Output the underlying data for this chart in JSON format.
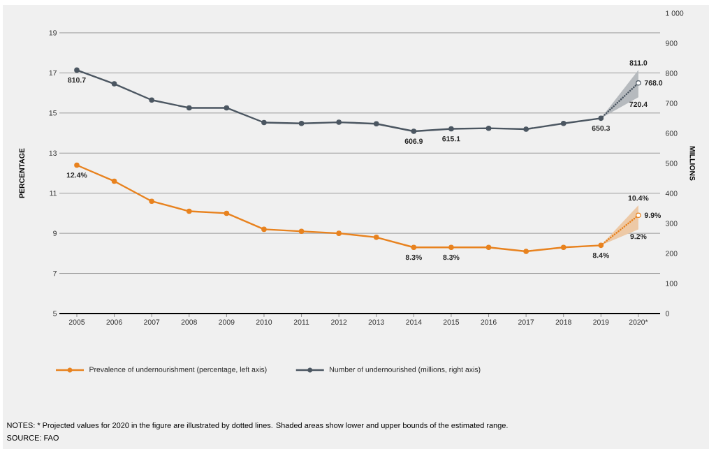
{
  "chart_data": {
    "type": "line",
    "ylabel": "PERCENTAGE",
    "y2label": "MILLIONS",
    "categories": [
      "2005",
      "2006",
      "2007",
      "2008",
      "2009",
      "2010",
      "2011",
      "2012",
      "2013",
      "2014",
      "2015",
      "2016",
      "2017",
      "2018",
      "2019",
      "2020*"
    ],
    "ylim": [
      5,
      19
    ],
    "yticks": [
      5,
      7,
      9,
      11,
      13,
      15,
      17,
      19
    ],
    "y2lim": [
      0,
      1000
    ],
    "y2ticks": [
      0,
      100,
      200,
      300,
      400,
      500,
      600,
      700,
      800,
      900,
      {
        "value": 1000,
        "label": "1 000"
      }
    ],
    "grid": "y",
    "legend": "bottom",
    "marker": "circle",
    "line_style": "solid",
    "series": [
      {
        "name": "Prevalence of undernourishment (percentage, left axis)",
        "color": "#e8821e",
        "values": [
          12.4,
          11.6,
          10.6,
          10.1,
          10.0,
          9.2,
          9.1,
          9.0,
          8.8,
          8.3,
          8.3,
          8.3,
          8.1,
          8.3,
          8.4,
          null
        ],
        "value_labels": [
          "12.4%",
          null,
          null,
          null,
          null,
          null,
          null,
          null,
          null,
          "8.3%",
          "8.3%",
          null,
          null,
          null,
          "8.4%",
          null
        ]
      },
      {
        "color": "#e8821e",
        "line_style": "dotted",
        "values": [
          null,
          null,
          null,
          null,
          null,
          null,
          null,
          null,
          null,
          null,
          null,
          null,
          null,
          null,
          8.4,
          9.9
        ],
        "lower": [
          null,
          null,
          null,
          null,
          null,
          null,
          null,
          null,
          null,
          null,
          null,
          null,
          null,
          null,
          8.4,
          9.2
        ],
        "upper": [
          null,
          null,
          null,
          null,
          null,
          null,
          null,
          null,
          null,
          null,
          null,
          null,
          null,
          null,
          8.4,
          10.4
        ],
        "value_labels": [
          null,
          null,
          null,
          null,
          null,
          null,
          null,
          null,
          null,
          null,
          null,
          null,
          null,
          null,
          null,
          "9.9%"
        ]
      },
      {
        "name": "Number of undernourished (millions, right axis)",
        "color": "#4b5661",
        "axis": "y2",
        "values": [
          810.7,
          765,
          711,
          685,
          685,
          636,
          633,
          637,
          632,
          606.9,
          615.1,
          617,
          614,
          633,
          650.3,
          null
        ],
        "value_labels": [
          "810.7",
          null,
          null,
          null,
          null,
          null,
          null,
          null,
          null,
          "606.9",
          "615.1",
          null,
          null,
          null,
          "650.3",
          null
        ]
      },
      {
        "color": "#4b5661",
        "axis": "y2",
        "line_style": "dotted",
        "values": [
          null,
          null,
          null,
          null,
          null,
          null,
          null,
          null,
          null,
          null,
          null,
          null,
          null,
          null,
          650.3,
          768.0
        ],
        "lower": [
          null,
          null,
          null,
          null,
          null,
          null,
          null,
          null,
          null,
          null,
          null,
          null,
          null,
          null,
          650.3,
          720.4
        ],
        "upper": [
          null,
          null,
          null,
          null,
          null,
          null,
          null,
          null,
          null,
          null,
          null,
          null,
          null,
          null,
          650.3,
          811.0
        ],
        "value_labels": [
          null,
          null,
          null,
          null,
          null,
          null,
          null,
          null,
          null,
          null,
          null,
          null,
          null,
          null,
          null,
          "768.0"
        ]
      }
    ],
    "annotations": [
      "NOTES: * Projected values for 2020 in the figure are illustrated by dotted lines. Shaded areas show lower and upper bounds of the estimated range.",
      "SOURCE: FAO",
      {
        "text": "10.4%",
        "x": "2020*",
        "y": 10.4
      },
      {
        "text": "9.2%",
        "x": "2020*",
        "y": 9.2
      },
      "811.0",
      "720.4"
    ]
  }
}
